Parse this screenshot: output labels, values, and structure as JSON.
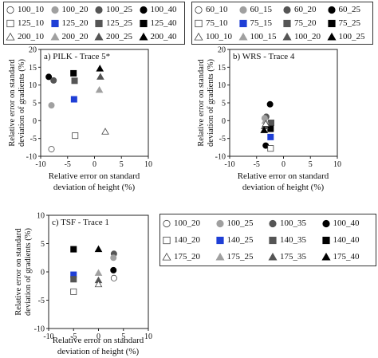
{
  "colors": {
    "white": "#ffffff",
    "light_gray": "#a0a0a0",
    "dark_gray": "#555555",
    "black": "#000000",
    "blue": "#1f3fd6"
  },
  "legends": [
    {
      "items": [
        {
          "label": "100_10",
          "marker": "circle",
          "fill": "white"
        },
        {
          "label": "100_20",
          "marker": "circle",
          "fill": "light_gray"
        },
        {
          "label": "100_25",
          "marker": "circle",
          "fill": "dark_gray"
        },
        {
          "label": "100_40",
          "marker": "circle",
          "fill": "black"
        },
        {
          "label": "125_10",
          "marker": "square",
          "fill": "white"
        },
        {
          "label": "125_20",
          "marker": "square",
          "fill": "blue"
        },
        {
          "label": "125_25",
          "marker": "square",
          "fill": "dark_gray"
        },
        {
          "label": "125_40",
          "marker": "square",
          "fill": "black"
        },
        {
          "label": "200_10",
          "marker": "triangle",
          "fill": "white"
        },
        {
          "label": "200_20",
          "marker": "triangle",
          "fill": "light_gray"
        },
        {
          "label": "200_25",
          "marker": "triangle",
          "fill": "dark_gray"
        },
        {
          "label": "200_40",
          "marker": "triangle",
          "fill": "black"
        }
      ]
    },
    {
      "items": [
        {
          "label": "60_10",
          "marker": "circle",
          "fill": "white"
        },
        {
          "label": "60_15",
          "marker": "circle",
          "fill": "light_gray"
        },
        {
          "label": "60_20",
          "marker": "circle",
          "fill": "dark_gray"
        },
        {
          "label": "60_25",
          "marker": "circle",
          "fill": "black"
        },
        {
          "label": "75_10",
          "marker": "square",
          "fill": "white"
        },
        {
          "label": "75_15",
          "marker": "square",
          "fill": "blue"
        },
        {
          "label": "75_20",
          "marker": "square",
          "fill": "dark_gray"
        },
        {
          "label": "75_25",
          "marker": "square",
          "fill": "black"
        },
        {
          "label": "100_10",
          "marker": "triangle",
          "fill": "white"
        },
        {
          "label": "100_15",
          "marker": "triangle",
          "fill": "light_gray"
        },
        {
          "label": "100_20",
          "marker": "triangle",
          "fill": "dark_gray"
        },
        {
          "label": "100_25",
          "marker": "triangle",
          "fill": "black"
        }
      ]
    },
    {
      "items": [
        {
          "label": "100_20",
          "marker": "circle",
          "fill": "white"
        },
        {
          "label": "100_25",
          "marker": "circle",
          "fill": "light_gray"
        },
        {
          "label": "100_35",
          "marker": "circle",
          "fill": "dark_gray"
        },
        {
          "label": "100_40",
          "marker": "circle",
          "fill": "black"
        },
        {
          "label": "140_20",
          "marker": "square",
          "fill": "white"
        },
        {
          "label": "140_25",
          "marker": "square",
          "fill": "blue"
        },
        {
          "label": "140_35",
          "marker": "square",
          "fill": "dark_gray"
        },
        {
          "label": "140_40",
          "marker": "square",
          "fill": "black"
        },
        {
          "label": "175_20",
          "marker": "triangle",
          "fill": "white"
        },
        {
          "label": "175_25",
          "marker": "triangle",
          "fill": "light_gray"
        },
        {
          "label": "175_35",
          "marker": "triangle",
          "fill": "dark_gray"
        },
        {
          "label": "175_40",
          "marker": "triangle",
          "fill": "black"
        }
      ]
    }
  ],
  "chart_data": [
    {
      "type": "scatter",
      "annotation": "a) PILK - Trace 5*",
      "xlabel": "Relative error on standard deviation of height  (%)",
      "ylabel": "Relative error on standard deviation of gradients (%)",
      "xlim": [
        -10,
        10
      ],
      "ylim": [
        -10,
        20
      ],
      "xticks": [
        -10,
        -5,
        0,
        5,
        10
      ],
      "yticks": [
        -10,
        -5,
        0,
        5,
        10,
        15,
        20
      ],
      "grid": false,
      "points": [
        {
          "x": -8.5,
          "y": 12.3,
          "marker": "circle",
          "fill": "black"
        },
        {
          "x": -7.6,
          "y": 11.3,
          "marker": "circle",
          "fill": "dark_gray"
        },
        {
          "x": -8.0,
          "y": 4.3,
          "marker": "circle",
          "fill": "light_gray"
        },
        {
          "x": -8.0,
          "y": -8.0,
          "marker": "circle",
          "fill": "white"
        },
        {
          "x": -3.9,
          "y": 13.3,
          "marker": "square",
          "fill": "black"
        },
        {
          "x": -3.7,
          "y": 11.2,
          "marker": "square",
          "fill": "dark_gray"
        },
        {
          "x": -3.8,
          "y": 6.0,
          "marker": "square",
          "fill": "blue"
        },
        {
          "x": -3.6,
          "y": -4.2,
          "marker": "square",
          "fill": "white"
        },
        {
          "x": 1.0,
          "y": 14.6,
          "marker": "triangle",
          "fill": "black"
        },
        {
          "x": 1.1,
          "y": 12.3,
          "marker": "triangle",
          "fill": "dark_gray"
        },
        {
          "x": 0.9,
          "y": 8.6,
          "marker": "triangle",
          "fill": "light_gray"
        },
        {
          "x": 2.0,
          "y": -3.1,
          "marker": "triangle",
          "fill": "white"
        }
      ]
    },
    {
      "type": "scatter",
      "annotation": "b) WRS - Trace 4",
      "xlabel": "Relative error on standard deviation of height  (%)",
      "ylabel": "Relative error on standard deviation of gradients (%)",
      "xlim": [
        -10,
        10
      ],
      "ylim": [
        -10,
        20
      ],
      "xticks": [
        -10,
        -5,
        0,
        5,
        10
      ],
      "yticks": [
        -10,
        -5,
        0,
        5,
        10,
        15,
        20
      ],
      "grid": false,
      "points": [
        {
          "x": -2.5,
          "y": 4.6,
          "marker": "circle",
          "fill": "black"
        },
        {
          "x": -3.2,
          "y": 1.1,
          "marker": "circle",
          "fill": "dark_gray"
        },
        {
          "x": -3.5,
          "y": 0.7,
          "marker": "circle",
          "fill": "light_gray"
        },
        {
          "x": -3.3,
          "y": -7.0,
          "marker": "circle",
          "fill": "black"
        },
        {
          "x": -2.3,
          "y": -0.6,
          "marker": "square",
          "fill": "dark_gray"
        },
        {
          "x": -2.4,
          "y": -2.3,
          "marker": "square",
          "fill": "black"
        },
        {
          "x": -2.4,
          "y": -4.6,
          "marker": "square",
          "fill": "blue"
        },
        {
          "x": -2.4,
          "y": -7.8,
          "marker": "square",
          "fill": "white"
        },
        {
          "x": -3.4,
          "y": -0.1,
          "marker": "triangle",
          "fill": "light_gray"
        },
        {
          "x": -3.5,
          "y": -1.6,
          "marker": "triangle",
          "fill": "dark_gray"
        },
        {
          "x": -3.6,
          "y": -2.7,
          "marker": "triangle",
          "fill": "black"
        },
        {
          "x": -3.3,
          "y": -0.9,
          "marker": "triangle",
          "fill": "white"
        }
      ]
    },
    {
      "type": "scatter",
      "annotation": "c) TSF - Trace 1",
      "xlabel": "Relative error on standard deviation of height  (%)",
      "ylabel": "Relative error on standard deviation of gradients (%)",
      "xlim": [
        -10,
        10
      ],
      "ylim": [
        -10,
        10
      ],
      "xticks": [
        -10,
        -5,
        0,
        5,
        10
      ],
      "yticks": [
        -10,
        -5,
        0,
        5,
        10
      ],
      "grid": false,
      "points": [
        {
          "x": 3.1,
          "y": 3.2,
          "marker": "circle",
          "fill": "dark_gray"
        },
        {
          "x": 3.0,
          "y": 2.5,
          "marker": "circle",
          "fill": "light_gray"
        },
        {
          "x": 3.0,
          "y": 0.3,
          "marker": "circle",
          "fill": "black"
        },
        {
          "x": 3.1,
          "y": -1.1,
          "marker": "circle",
          "fill": "white"
        },
        {
          "x": -5.0,
          "y": 4.0,
          "marker": "square",
          "fill": "black"
        },
        {
          "x": -5.0,
          "y": -0.5,
          "marker": "square",
          "fill": "blue"
        },
        {
          "x": -5.0,
          "y": -1.3,
          "marker": "square",
          "fill": "dark_gray"
        },
        {
          "x": -5.0,
          "y": -3.5,
          "marker": "square",
          "fill": "white"
        },
        {
          "x": 0.0,
          "y": 4.0,
          "marker": "triangle",
          "fill": "black"
        },
        {
          "x": 0.0,
          "y": -0.2,
          "marker": "triangle",
          "fill": "light_gray"
        },
        {
          "x": 0.0,
          "y": -1.5,
          "marker": "triangle",
          "fill": "dark_gray"
        },
        {
          "x": 0.0,
          "y": -2.2,
          "marker": "triangle",
          "fill": "white"
        }
      ]
    }
  ]
}
